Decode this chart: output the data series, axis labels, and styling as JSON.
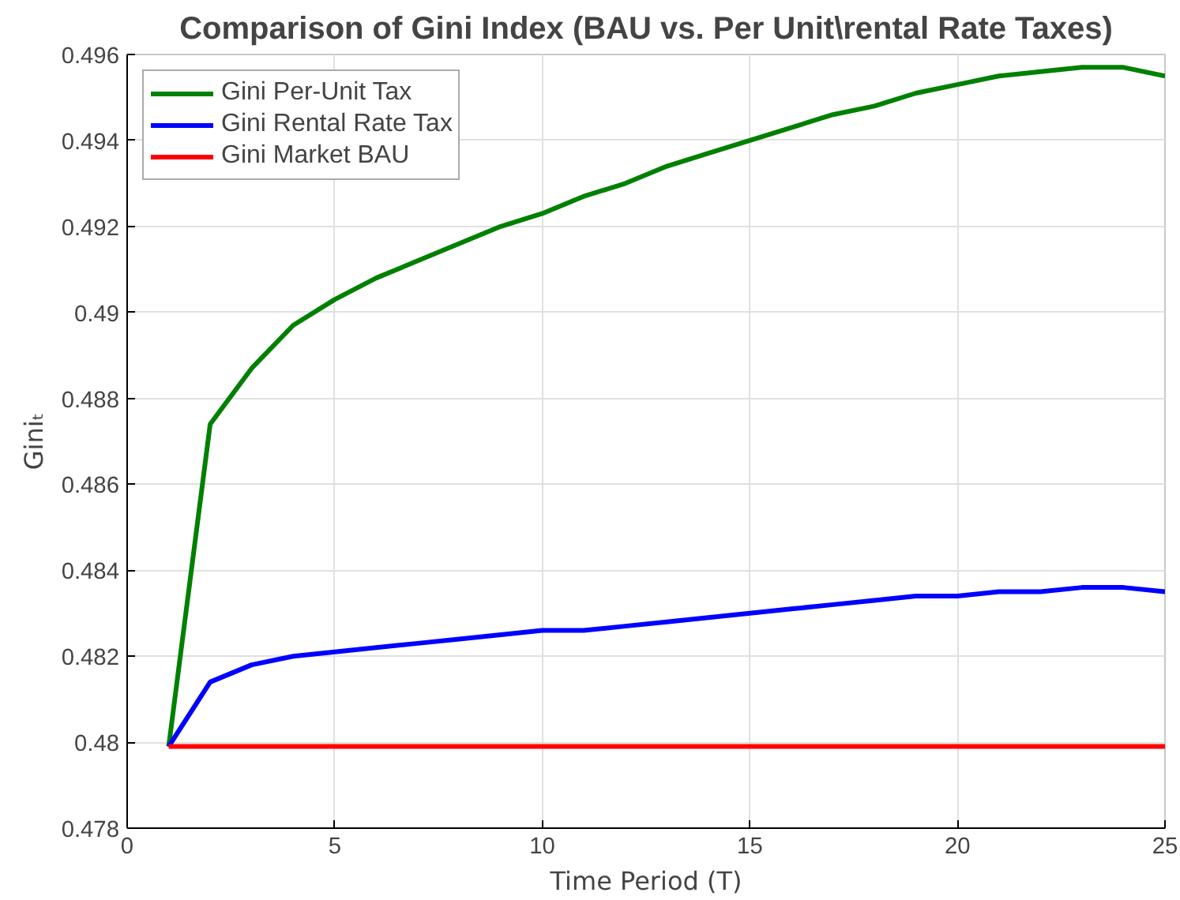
{
  "chart_data": {
    "type": "line",
    "title": "Comparison of Gini Index (BAU vs. Per Unit\\rental Rate Taxes)",
    "xlabel": "Time Period (T)",
    "ylabel": "Giniₜ",
    "x": [
      1,
      2,
      3,
      4,
      5,
      6,
      7,
      8,
      9,
      10,
      11,
      12,
      13,
      14,
      15,
      16,
      17,
      18,
      19,
      20,
      21,
      22,
      23,
      24,
      25
    ],
    "series": [
      {
        "name": "Gini Per-Unit Tax",
        "color": "#008000",
        "values": [
          0.4799,
          0.4874,
          0.4887,
          0.4897,
          0.4903,
          0.4908,
          0.4912,
          0.4916,
          0.492,
          0.4923,
          0.4927,
          0.493,
          0.4934,
          0.4937,
          0.494,
          0.4943,
          0.4946,
          0.4948,
          0.4951,
          0.4953,
          0.4955,
          0.4956,
          0.4957,
          0.4957,
          0.4955
        ]
      },
      {
        "name": "Gini Rental Rate Tax",
        "color": "#0000ff",
        "values": [
          0.4799,
          0.4814,
          0.4818,
          0.482,
          0.4821,
          0.4822,
          0.4823,
          0.4824,
          0.4825,
          0.4826,
          0.4826,
          0.4827,
          0.4828,
          0.4829,
          0.483,
          0.4831,
          0.4832,
          0.4833,
          0.4834,
          0.4834,
          0.4835,
          0.4835,
          0.4836,
          0.4836,
          0.4835
        ]
      },
      {
        "name": "Gini Market BAU",
        "color": "#ff0000",
        "values": [
          0.4799,
          0.4799,
          0.4799,
          0.4799,
          0.4799,
          0.4799,
          0.4799,
          0.4799,
          0.4799,
          0.4799,
          0.4799,
          0.4799,
          0.4799,
          0.4799,
          0.4799,
          0.4799,
          0.4799,
          0.4799,
          0.4799,
          0.4799,
          0.4799,
          0.4799,
          0.4799,
          0.4799,
          0.4799
        ]
      }
    ],
    "xlim": [
      0,
      25
    ],
    "ylim": [
      0.478,
      0.496
    ],
    "xticks": [
      0,
      5,
      10,
      15,
      20,
      25
    ],
    "yticks": [
      0.478,
      0.48,
      0.482,
      0.484,
      0.486,
      0.488,
      0.49,
      0.492,
      0.494,
      0.496
    ],
    "grid": true,
    "legend": "top left",
    "marker": "none",
    "line_style": "solid"
  }
}
